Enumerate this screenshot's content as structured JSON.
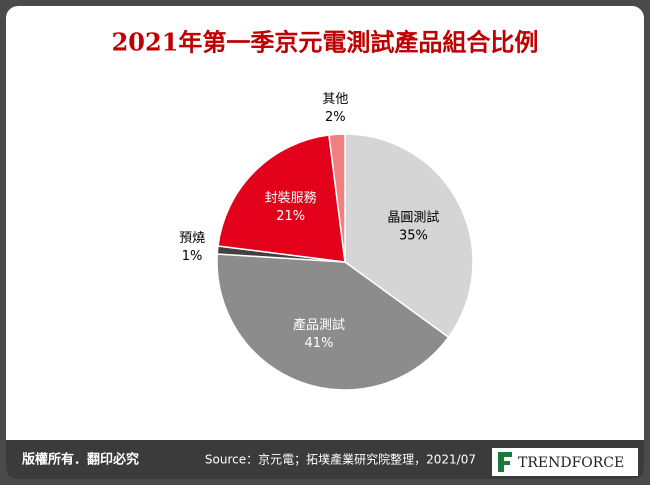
{
  "chart_data": {
    "type": "pie",
    "title": "2021年第一季京元電測試產品組合比例",
    "categories": [
      "晶圓測試",
      "產品測試",
      "預燒",
      "封裝服務",
      "其他"
    ],
    "values": [
      35,
      41,
      1,
      21,
      2
    ],
    "value_labels": [
      "35%",
      "41%",
      "1%",
      "21%",
      "2%"
    ],
    "colors": [
      "#d5d5d5",
      "#8c8c8c",
      "#404040",
      "#e2001a",
      "#f08080"
    ]
  },
  "footer": {
    "copyright": "版權所有．翻印必究",
    "source": "Source：京元電；拓墣產業研究院整理，2021/07",
    "brand": "TRENDFORCE"
  }
}
